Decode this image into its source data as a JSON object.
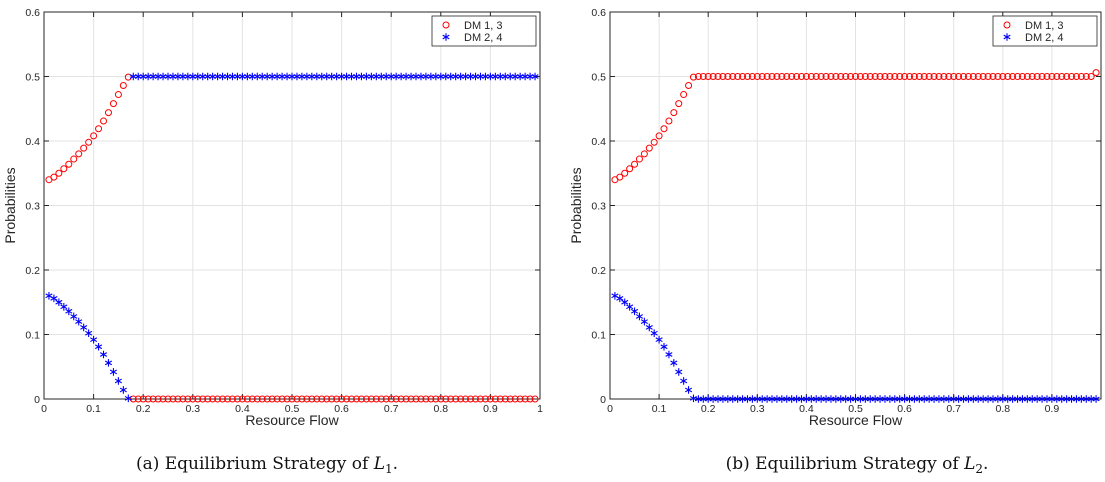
{
  "chart_data": [
    {
      "type": "scatter",
      "caption_prefix": "(a)  Equilibrium Strategy of ",
      "caption_var": "L",
      "caption_sub": "1",
      "caption_suffix": ".",
      "xlabel": "Resource Flow",
      "ylabel": "Probabilities",
      "xlim": [
        0,
        1
      ],
      "ylim": [
        0,
        0.6
      ],
      "xticks": [
        0,
        0.1,
        0.2,
        0.3,
        0.4,
        0.5,
        0.6,
        0.7,
        0.8,
        0.9,
        1
      ],
      "xtick_labels": [
        "0",
        "0.1",
        "0.2",
        "0.3",
        "0.4",
        "0.5",
        "0.6",
        "0.7",
        "0.8",
        "0.9",
        "1"
      ],
      "yticks": [
        0,
        0.1,
        0.2,
        0.3,
        0.4,
        0.5,
        0.6
      ],
      "ytick_labels": [
        "0",
        "0.1",
        "0.2",
        "0.3",
        "0.4",
        "0.5",
        "0.6"
      ],
      "grid": true,
      "legend_position": "top-right",
      "series": [
        {
          "name": "DM 1, 3",
          "marker": "circle",
          "color": "#ff0000",
          "x": [
            0.01,
            0.02,
            0.03,
            0.04,
            0.05,
            0.06,
            0.07,
            0.08,
            0.09,
            0.1,
            0.11,
            0.12,
            0.13,
            0.14,
            0.15,
            0.16,
            0.17,
            0.18,
            0.19,
            0.2,
            0.21,
            0.22,
            0.23,
            0.24,
            0.25,
            0.26,
            0.27,
            0.28,
            0.29,
            0.3,
            0.31,
            0.32,
            0.33,
            0.34,
            0.35,
            0.36,
            0.37,
            0.38,
            0.39,
            0.4,
            0.41,
            0.42,
            0.43,
            0.44,
            0.45,
            0.46,
            0.47,
            0.48,
            0.49,
            0.5,
            0.51,
            0.52,
            0.53,
            0.54,
            0.55,
            0.56,
            0.57,
            0.58,
            0.59,
            0.6,
            0.61,
            0.62,
            0.63,
            0.64,
            0.65,
            0.66,
            0.67,
            0.68,
            0.69,
            0.7,
            0.71,
            0.72,
            0.73,
            0.74,
            0.75,
            0.76,
            0.77,
            0.78,
            0.79,
            0.8,
            0.81,
            0.82,
            0.83,
            0.84,
            0.85,
            0.86,
            0.87,
            0.88,
            0.89,
            0.9,
            0.91,
            0.92,
            0.93,
            0.94,
            0.95,
            0.96,
            0.97,
            0.98,
            0.99
          ],
          "y": [
            0.34,
            0.344,
            0.35,
            0.357,
            0.364,
            0.372,
            0.38,
            0.389,
            0.398,
            0.408,
            0.419,
            0.431,
            0.444,
            0.458,
            0.472,
            0.486,
            0.499,
            0,
            0,
            0,
            0,
            0,
            0,
            0,
            0,
            0,
            0,
            0,
            0,
            0,
            0,
            0,
            0,
            0,
            0,
            0,
            0,
            0,
            0,
            0,
            0,
            0,
            0,
            0,
            0,
            0,
            0,
            0,
            0,
            0,
            0,
            0,
            0,
            0,
            0,
            0,
            0,
            0,
            0,
            0,
            0,
            0,
            0,
            0,
            0,
            0,
            0,
            0,
            0,
            0,
            0,
            0,
            0,
            0,
            0,
            0,
            0,
            0,
            0,
            0,
            0,
            0,
            0,
            0,
            0,
            0,
            0,
            0,
            0,
            0,
            0,
            0,
            0,
            0,
            0,
            0,
            0,
            0,
            0
          ]
        },
        {
          "name": "DM 2, 4",
          "marker": "asterisk",
          "color": "#0000ff",
          "x": [
            0.01,
            0.02,
            0.03,
            0.04,
            0.05,
            0.06,
            0.07,
            0.08,
            0.09,
            0.1,
            0.11,
            0.12,
            0.13,
            0.14,
            0.15,
            0.16,
            0.17,
            0.18,
            0.19,
            0.2,
            0.21,
            0.22,
            0.23,
            0.24,
            0.25,
            0.26,
            0.27,
            0.28,
            0.29,
            0.3,
            0.31,
            0.32,
            0.33,
            0.34,
            0.35,
            0.36,
            0.37,
            0.38,
            0.39,
            0.4,
            0.41,
            0.42,
            0.43,
            0.44,
            0.45,
            0.46,
            0.47,
            0.48,
            0.49,
            0.5,
            0.51,
            0.52,
            0.53,
            0.54,
            0.55,
            0.56,
            0.57,
            0.58,
            0.59,
            0.6,
            0.61,
            0.62,
            0.63,
            0.64,
            0.65,
            0.66,
            0.67,
            0.68,
            0.69,
            0.7,
            0.71,
            0.72,
            0.73,
            0.74,
            0.75,
            0.76,
            0.77,
            0.78,
            0.79,
            0.8,
            0.81,
            0.82,
            0.83,
            0.84,
            0.85,
            0.86,
            0.87,
            0.88,
            0.89,
            0.9,
            0.91,
            0.92,
            0.93,
            0.94,
            0.95,
            0.96,
            0.97,
            0.98,
            0.99
          ],
          "y": [
            0.16,
            0.156,
            0.15,
            0.143,
            0.136,
            0.128,
            0.12,
            0.111,
            0.102,
            0.092,
            0.081,
            0.069,
            0.056,
            0.042,
            0.028,
            0.014,
            0.001,
            0.5,
            0.5,
            0.5,
            0.5,
            0.5,
            0.5,
            0.5,
            0.5,
            0.5,
            0.5,
            0.5,
            0.5,
            0.5,
            0.5,
            0.5,
            0.5,
            0.5,
            0.5,
            0.5,
            0.5,
            0.5,
            0.5,
            0.5,
            0.5,
            0.5,
            0.5,
            0.5,
            0.5,
            0.5,
            0.5,
            0.5,
            0.5,
            0.5,
            0.5,
            0.5,
            0.5,
            0.5,
            0.5,
            0.5,
            0.5,
            0.5,
            0.5,
            0.5,
            0.5,
            0.5,
            0.5,
            0.5,
            0.5,
            0.5,
            0.5,
            0.5,
            0.5,
            0.5,
            0.5,
            0.5,
            0.5,
            0.5,
            0.5,
            0.5,
            0.5,
            0.5,
            0.5,
            0.5,
            0.5,
            0.5,
            0.5,
            0.5,
            0.5,
            0.5,
            0.5,
            0.5,
            0.5,
            0.5,
            0.5,
            0.5,
            0.5,
            0.5,
            0.5,
            0.5,
            0.5,
            0.5,
            0.5
          ]
        }
      ]
    },
    {
      "type": "scatter",
      "caption_prefix": "(b)  Equilibrium Strategy of ",
      "caption_var": "L",
      "caption_sub": "2",
      "caption_suffix": ".",
      "xlabel": "Resource Flow",
      "ylabel": "Probabilities",
      "xlim": [
        0,
        1
      ],
      "ylim": [
        0,
        0.6
      ],
      "xticks": [
        0,
        0.1,
        0.2,
        0.3,
        0.4,
        0.5,
        0.6,
        0.7,
        0.8,
        0.9
      ],
      "xtick_labels": [
        "0",
        "0.1",
        "0.2",
        "0.3",
        "0.4",
        "0.5",
        "0.6",
        "0.7",
        "0.8",
        "0.9"
      ],
      "yticks": [
        0,
        0.1,
        0.2,
        0.3,
        0.4,
        0.5,
        0.6
      ],
      "ytick_labels": [
        "0",
        "0.1",
        "0.2",
        "0.3",
        "0.4",
        "0.5",
        "0.6"
      ],
      "grid": true,
      "legend_position": "top-right",
      "series": [
        {
          "name": "DM 1, 3",
          "marker": "circle",
          "color": "#ff0000",
          "x": [
            0.01,
            0.02,
            0.03,
            0.04,
            0.05,
            0.06,
            0.07,
            0.08,
            0.09,
            0.1,
            0.11,
            0.12,
            0.13,
            0.14,
            0.15,
            0.16,
            0.17,
            0.18,
            0.19,
            0.2,
            0.21,
            0.22,
            0.23,
            0.24,
            0.25,
            0.26,
            0.27,
            0.28,
            0.29,
            0.3,
            0.31,
            0.32,
            0.33,
            0.34,
            0.35,
            0.36,
            0.37,
            0.38,
            0.39,
            0.4,
            0.41,
            0.42,
            0.43,
            0.44,
            0.45,
            0.46,
            0.47,
            0.48,
            0.49,
            0.5,
            0.51,
            0.52,
            0.53,
            0.54,
            0.55,
            0.56,
            0.57,
            0.58,
            0.59,
            0.6,
            0.61,
            0.62,
            0.63,
            0.64,
            0.65,
            0.66,
            0.67,
            0.68,
            0.69,
            0.7,
            0.71,
            0.72,
            0.73,
            0.74,
            0.75,
            0.76,
            0.77,
            0.78,
            0.79,
            0.8,
            0.81,
            0.82,
            0.83,
            0.84,
            0.85,
            0.86,
            0.87,
            0.88,
            0.89,
            0.9,
            0.91,
            0.92,
            0.93,
            0.94,
            0.95,
            0.96,
            0.97,
            0.98,
            0.99
          ],
          "y": [
            0.34,
            0.344,
            0.35,
            0.357,
            0.364,
            0.372,
            0.38,
            0.389,
            0.398,
            0.408,
            0.419,
            0.431,
            0.444,
            0.458,
            0.472,
            0.486,
            0.499,
            0.5,
            0.5,
            0.5,
            0.5,
            0.5,
            0.5,
            0.5,
            0.5,
            0.5,
            0.5,
            0.5,
            0.5,
            0.5,
            0.5,
            0.5,
            0.5,
            0.5,
            0.5,
            0.5,
            0.5,
            0.5,
            0.5,
            0.5,
            0.5,
            0.5,
            0.5,
            0.5,
            0.5,
            0.5,
            0.5,
            0.5,
            0.5,
            0.5,
            0.5,
            0.5,
            0.5,
            0.5,
            0.5,
            0.5,
            0.5,
            0.5,
            0.5,
            0.5,
            0.5,
            0.5,
            0.5,
            0.5,
            0.5,
            0.5,
            0.5,
            0.5,
            0.5,
            0.5,
            0.5,
            0.5,
            0.5,
            0.5,
            0.5,
            0.5,
            0.5,
            0.5,
            0.5,
            0.5,
            0.5,
            0.5,
            0.5,
            0.5,
            0.5,
            0.5,
            0.5,
            0.5,
            0.5,
            0.5,
            0.5,
            0.5,
            0.5,
            0.5,
            0.5,
            0.5,
            0.5,
            0.5,
            0.506
          ]
        },
        {
          "name": "DM 2, 4",
          "marker": "asterisk",
          "color": "#0000ff",
          "x": [
            0.01,
            0.02,
            0.03,
            0.04,
            0.05,
            0.06,
            0.07,
            0.08,
            0.09,
            0.1,
            0.11,
            0.12,
            0.13,
            0.14,
            0.15,
            0.16,
            0.17,
            0.18,
            0.19,
            0.2,
            0.21,
            0.22,
            0.23,
            0.24,
            0.25,
            0.26,
            0.27,
            0.28,
            0.29,
            0.3,
            0.31,
            0.32,
            0.33,
            0.34,
            0.35,
            0.36,
            0.37,
            0.38,
            0.39,
            0.4,
            0.41,
            0.42,
            0.43,
            0.44,
            0.45,
            0.46,
            0.47,
            0.48,
            0.49,
            0.5,
            0.51,
            0.52,
            0.53,
            0.54,
            0.55,
            0.56,
            0.57,
            0.58,
            0.59,
            0.6,
            0.61,
            0.62,
            0.63,
            0.64,
            0.65,
            0.66,
            0.67,
            0.68,
            0.69,
            0.7,
            0.71,
            0.72,
            0.73,
            0.74,
            0.75,
            0.76,
            0.77,
            0.78,
            0.79,
            0.8,
            0.81,
            0.82,
            0.83,
            0.84,
            0.85,
            0.86,
            0.87,
            0.88,
            0.89,
            0.9,
            0.91,
            0.92,
            0.93,
            0.94,
            0.95,
            0.96,
            0.97,
            0.98,
            0.99
          ],
          "y": [
            0.16,
            0.156,
            0.15,
            0.143,
            0.136,
            0.128,
            0.12,
            0.111,
            0.102,
            0.092,
            0.081,
            0.069,
            0.056,
            0.042,
            0.028,
            0.014,
            0.001,
            0,
            0,
            0,
            0,
            0,
            0,
            0,
            0,
            0,
            0,
            0,
            0,
            0,
            0,
            0,
            0,
            0,
            0,
            0,
            0,
            0,
            0,
            0,
            0,
            0,
            0,
            0,
            0,
            0,
            0,
            0,
            0,
            0,
            0,
            0,
            0,
            0,
            0,
            0,
            0,
            0,
            0,
            0,
            0,
            0,
            0,
            0,
            0,
            0,
            0,
            0,
            0,
            0,
            0,
            0,
            0,
            0,
            0,
            0,
            0,
            0,
            0,
            0,
            0,
            0,
            0,
            0,
            0,
            0,
            0,
            0,
            0,
            0,
            0,
            0,
            0,
            0,
            0,
            0,
            0,
            0,
            0
          ]
        }
      ]
    }
  ]
}
